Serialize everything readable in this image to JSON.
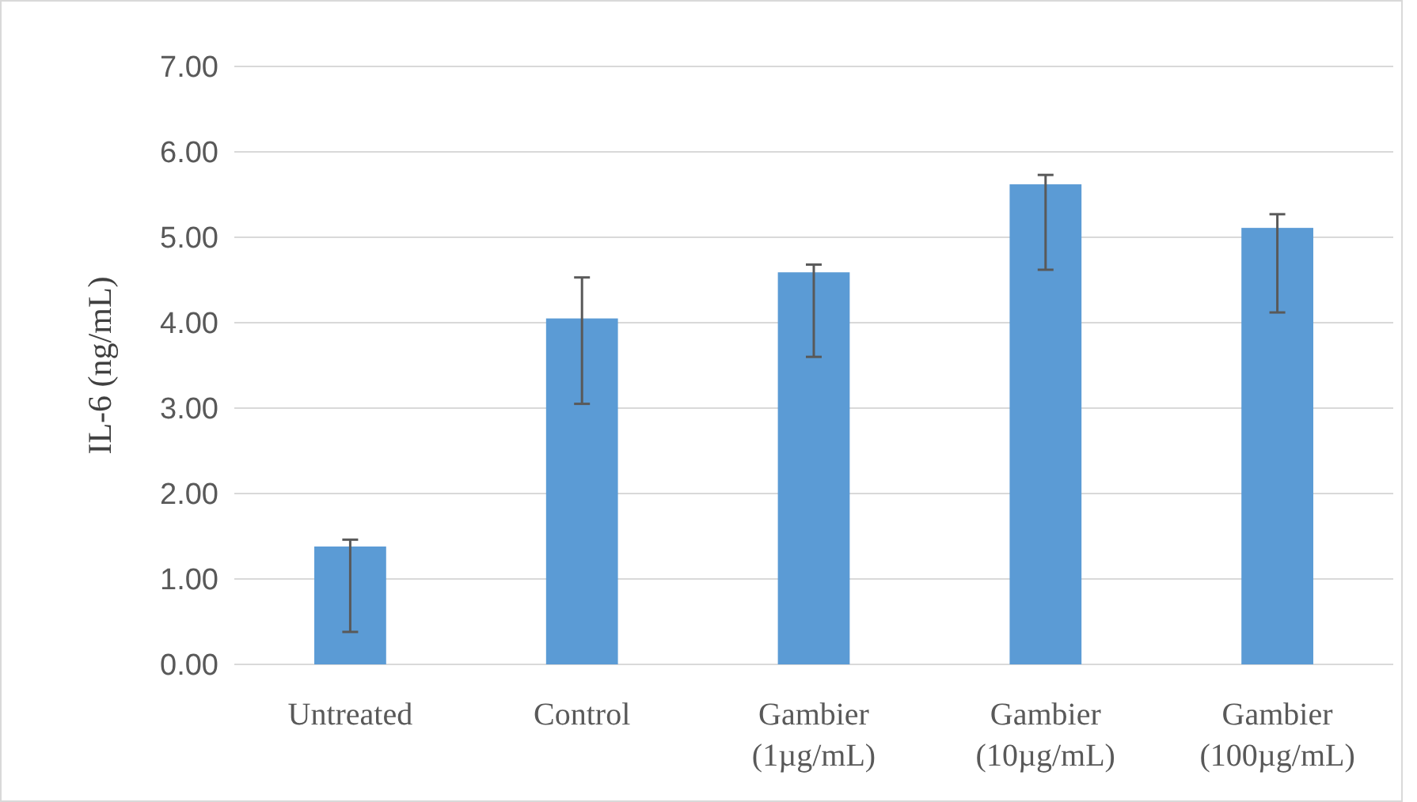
{
  "chart_data": {
    "type": "bar",
    "ylabel": "IL-6 (ng/mL)",
    "categories": [
      "Untreated",
      "Control",
      "Gambier (1µg/mL)",
      "Gambier (10µg/mL)",
      "Gambier (100µg/mL)"
    ],
    "values": [
      1.38,
      4.05,
      4.59,
      5.62,
      5.11
    ],
    "errors": [
      [
        0.38,
        1.46
      ],
      [
        3.05,
        4.53
      ],
      [
        3.6,
        4.68
      ],
      [
        4.62,
        5.73
      ],
      [
        4.12,
        5.27
      ]
    ],
    "color": "#5b9bd5",
    "ylim": [
      0,
      7
    ],
    "yticks": [
      {
        "value": 0,
        "label": "0.00"
      },
      {
        "value": 1,
        "label": "1.00"
      },
      {
        "value": 2,
        "label": "2.00"
      },
      {
        "value": 3,
        "label": "3.00"
      },
      {
        "value": 4,
        "label": "4.00"
      },
      {
        "value": 5,
        "label": "5.00"
      },
      {
        "value": 6,
        "label": "6.00"
      },
      {
        "value": 7,
        "label": "7.00"
      }
    ],
    "grid": "y"
  }
}
